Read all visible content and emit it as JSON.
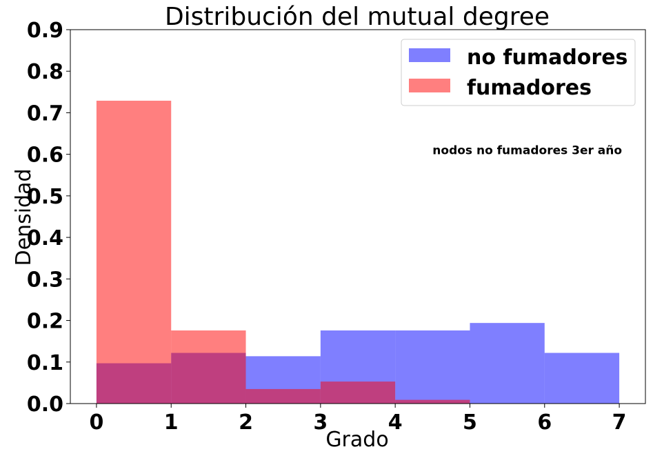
{
  "chart_data": {
    "type": "bar",
    "title": "Distribución del mutual degree",
    "xlabel": "Grado",
    "ylabel": "Densidad",
    "xlim": [
      -0.35,
      7.35
    ],
    "ylim": [
      0,
      0.9
    ],
    "xticks": [
      "0",
      "1",
      "2",
      "3",
      "4",
      "5",
      "6",
      "7"
    ],
    "yticks": [
      "0.0",
      "0.1",
      "0.2",
      "0.3",
      "0.4",
      "0.5",
      "0.6",
      "0.7",
      "0.8",
      "0.9"
    ],
    "bin_edges": [
      0,
      1,
      2,
      3,
      4,
      5,
      6,
      7
    ],
    "series": [
      {
        "name": "no fumadores",
        "color": "#0000ff",
        "opacity": 0.5,
        "values": [
          0.097,
          0.122,
          0.114,
          0.176,
          0.176,
          0.194,
          0.122
        ]
      },
      {
        "name": "fumadores",
        "color": "#ff0000",
        "opacity": 0.5,
        "values": [
          0.729,
          0.176,
          0.035,
          0.053,
          0.009,
          0,
          0
        ]
      }
    ],
    "legend_position": "top-right",
    "annotation": "nodos no fumadores 3er año",
    "annotation_x": 4.5,
    "annotation_y": 0.6,
    "grid": false
  }
}
